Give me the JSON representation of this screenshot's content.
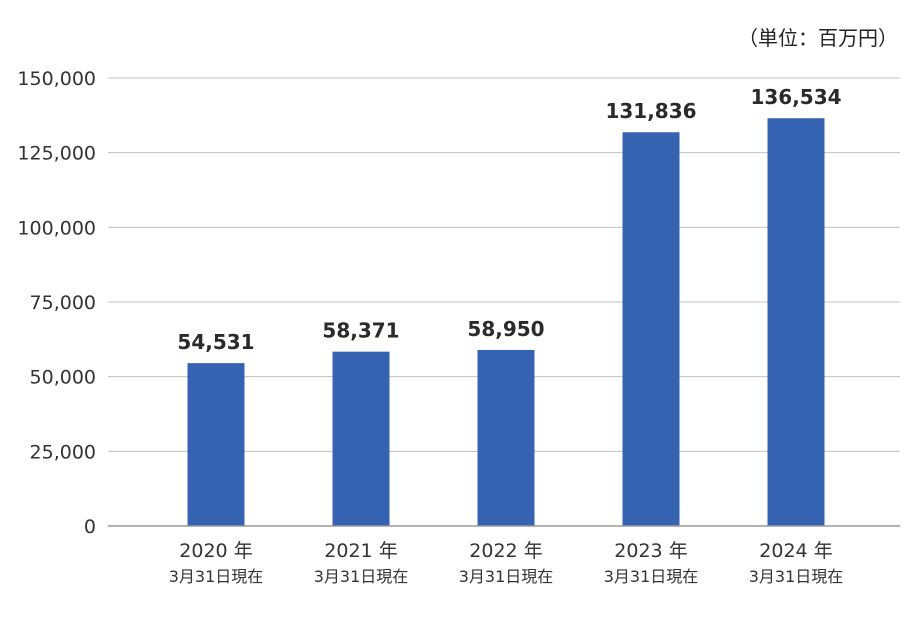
{
  "chart_data": {
    "type": "bar",
    "unit_note": "（単位：百万円）",
    "categories": [
      {
        "year": "2020 年",
        "date": "3月31日現在"
      },
      {
        "year": "2021 年",
        "date": "3月31日現在"
      },
      {
        "year": "2022 年",
        "date": "3月31日現在"
      },
      {
        "year": "2023 年",
        "date": "3月31日現在"
      },
      {
        "year": "2024 年",
        "date": "3月31日現在"
      }
    ],
    "values": [
      54531,
      58371,
      58950,
      131836,
      136534
    ],
    "value_labels": [
      "54,531",
      "58,371",
      "58,950",
      "131,836",
      "136,534"
    ],
    "ylim": [
      0,
      150000
    ],
    "yticks": [
      0,
      25000,
      50000,
      75000,
      100000,
      125000,
      150000
    ],
    "ytick_labels": [
      "0",
      "25,000",
      "50,000",
      "75,000",
      "100,000",
      "125,000",
      "150,000"
    ],
    "grid": true,
    "bar_color": "#3563b2",
    "grid_color": "#c0c0c0",
    "axis_color": "#9a9a9a"
  }
}
